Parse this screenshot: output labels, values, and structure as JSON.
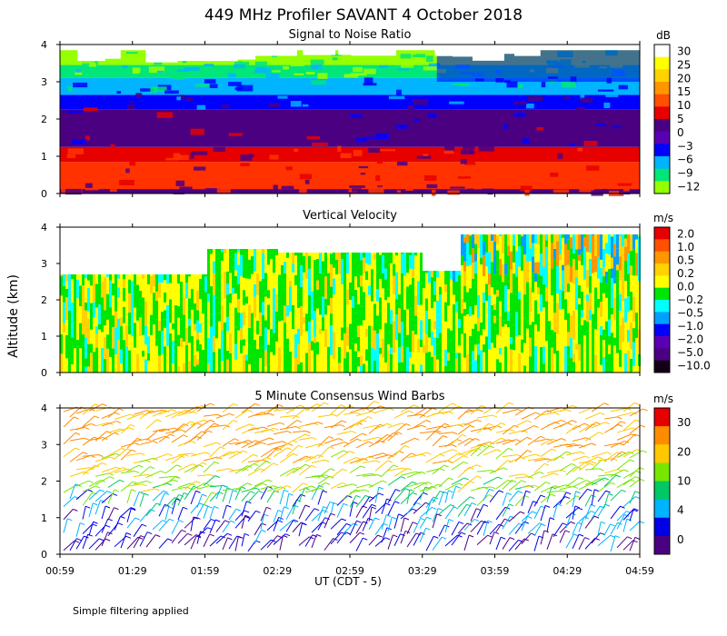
{
  "figure": {
    "title": "449 MHz Profiler SAVANT  4 October 2018",
    "ylabel": "Altitude (km)",
    "xlabel": "UT  (CDT - 5)",
    "x_ticks": [
      "00:59",
      "01:29",
      "01:59",
      "02:29",
      "02:59",
      "03:29",
      "03:59",
      "04:29",
      "04:59"
    ],
    "y_ticks": [
      "0",
      "1",
      "2",
      "3",
      "4"
    ],
    "footnote": "Simple filtering applied"
  },
  "chart_data": [
    {
      "type": "heatmap",
      "title": "Signal to Noise Ratio",
      "x_range": [
        "00:59",
        "04:59"
      ],
      "ylim": [
        0,
        4
      ],
      "colorbar": {
        "unit": "dB",
        "labels": [
          "30",
          "25",
          "20",
          "15",
          "10",
          "5",
          "0",
          "−3",
          "−6",
          "−9",
          "−12"
        ],
        "colors": [
          "#ffffff",
          "#ffff00",
          "#ffd200",
          "#ff9600",
          "#ff5000",
          "#e60000",
          "#4b0082",
          "#5a00b4",
          "#0000ff",
          "#00b4ff",
          "#00e678",
          "#96ff00"
        ]
      },
      "layers": [
        {
          "y0": 0.0,
          "y1": 0.12,
          "value_db": 5,
          "color": "#4b0082"
        },
        {
          "y0": 0.12,
          "y1": 0.85,
          "value_db": 12,
          "color": "#ff3200"
        },
        {
          "y0": 0.85,
          "y1": 1.25,
          "value_db": 11,
          "color": "#e60000"
        },
        {
          "y0": 1.25,
          "y1": 2.25,
          "value_db": 3,
          "color": "#4b0082"
        },
        {
          "y0": 2.25,
          "y1": 2.65,
          "value_db": -4,
          "color": "#0000ff"
        },
        {
          "y0": 2.65,
          "y1": 3.1,
          "value_db": -8,
          "color": "#00b4ff"
        },
        {
          "y0": 3.1,
          "y1": 3.45,
          "value_db": -10,
          "color": "#00e678"
        },
        {
          "y0": 3.45,
          "y1": 3.85,
          "value_db": -12,
          "color": "#96ff00"
        }
      ]
    },
    {
      "type": "heatmap",
      "title": "Vertical Velocity",
      "x_range": [
        "00:59",
        "04:59"
      ],
      "ylim": [
        0,
        4
      ],
      "colorbar": {
        "unit": "m/s",
        "labels": [
          "2.0",
          "1.0",
          "0.5",
          "0.2",
          "0.0",
          "−0.2",
          "−0.5",
          "−1.0",
          "−2.0",
          "−5.0",
          "−10.0"
        ],
        "colors": [
          "#e60000",
          "#ff5000",
          "#ff9600",
          "#ffd200",
          "#ffff00",
          "#00e600",
          "#00ffff",
          "#00a0ff",
          "#0000ff",
          "#5a00b4",
          "#4b0082",
          "#140014"
        ]
      },
      "data_top_km": [
        {
          "time": "00:59",
          "top": 2.7
        },
        {
          "time": "01:59",
          "top": 3.4
        },
        {
          "time": "02:29",
          "top": 3.3
        },
        {
          "time": "03:29",
          "top": 2.8
        },
        {
          "time": "03:44",
          "top": 3.8
        },
        {
          "time": "04:59",
          "top": 3.8
        }
      ],
      "dominant_values_ms": [
        0.0,
        -0.2
      ],
      "upper_late_values_ms": [
        0.2,
        0.5,
        -0.5
      ]
    },
    {
      "type": "scatter",
      "title": "5 Minute Consensus Wind Barbs",
      "x_range": [
        "00:59",
        "04:59"
      ],
      "ylim": [
        0,
        4
      ],
      "colorbar": {
        "unit": "m/s",
        "labels": [
          "30",
          "20",
          "10",
          "4",
          "0"
        ],
        "colors": [
          "#e60000",
          "#ff8c00",
          "#ffc800",
          "#78e600",
          "#00c864",
          "#00b4ff",
          "#0000e6",
          "#4b0082"
        ]
      },
      "speed_profile_ms": [
        {
          "alt_km": 0.2,
          "speed": 3
        },
        {
          "alt_km": 0.6,
          "speed": 5
        },
        {
          "alt_km": 1.0,
          "speed": 6
        },
        {
          "alt_km": 1.4,
          "speed": 9
        },
        {
          "alt_km": 1.8,
          "speed": 14
        },
        {
          "alt_km": 2.2,
          "speed": 16
        },
        {
          "alt_km": 2.6,
          "speed": 20
        },
        {
          "alt_km": 3.0,
          "speed": 24
        },
        {
          "alt_km": 3.4,
          "speed": 23
        },
        {
          "alt_km": 3.8,
          "speed": 21
        }
      ]
    }
  ]
}
